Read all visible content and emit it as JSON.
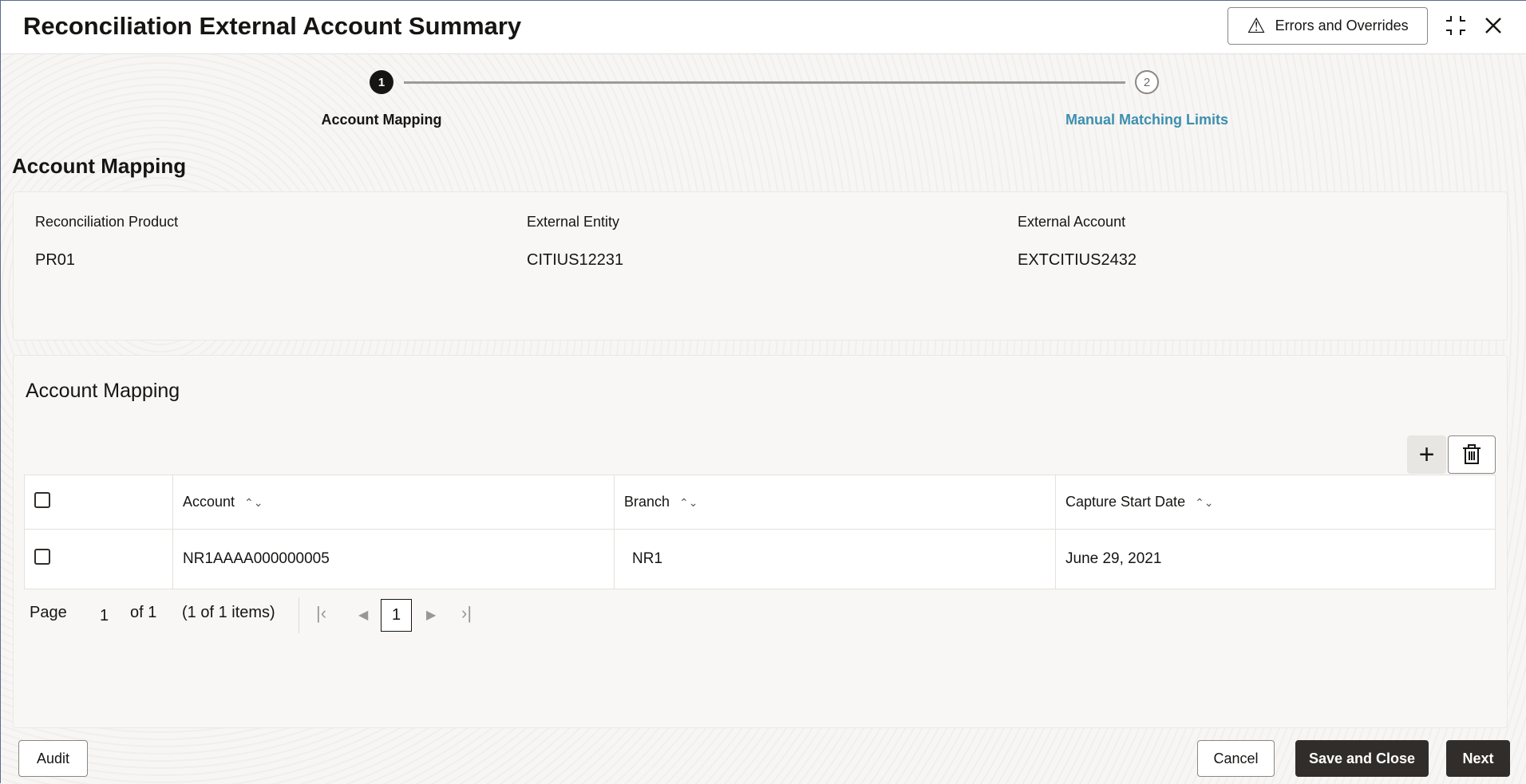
{
  "header": {
    "title": "Reconciliation External Account Summary",
    "errors_button": "Errors and Overrides"
  },
  "stepper": {
    "steps": [
      {
        "number": "1",
        "label": "Account Mapping",
        "state": "current"
      },
      {
        "number": "2",
        "label": "Manual Matching Limits",
        "state": "pending"
      }
    ],
    "link_color": "#3d8fb0"
  },
  "section_title": "Account Mapping",
  "summary": {
    "fields": [
      {
        "label": "Reconciliation Product",
        "value": "PR01"
      },
      {
        "label": "External Entity",
        "value": "CITIUS12231"
      },
      {
        "label": "External Account",
        "value": "EXTCITIUS2432"
      }
    ]
  },
  "grid": {
    "title": "Account Mapping",
    "columns": [
      "Account",
      "Branch",
      "Capture Start Date"
    ],
    "rows": [
      {
        "account": "NR1AAAA000000005",
        "branch": "NR1",
        "capture_start_date": "June 29, 2021"
      }
    ]
  },
  "pagination": {
    "page_label": "Page",
    "page": "1",
    "of_label": "of 1",
    "items": "(1 of 1 items)",
    "current": "1"
  },
  "footer": {
    "audit": "Audit",
    "cancel": "Cancel",
    "save_close": "Save and Close",
    "next": "Next"
  }
}
